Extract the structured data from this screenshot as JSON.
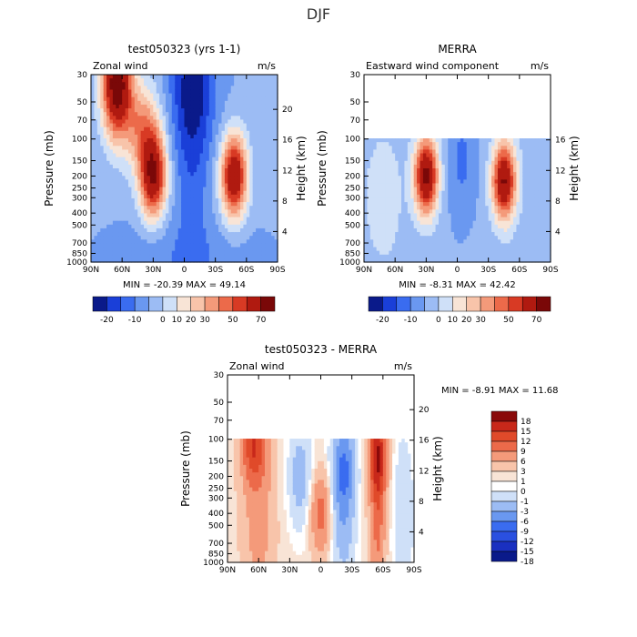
{
  "page": {
    "title": "DJF"
  },
  "chart_data": [
    {
      "type": "heatmap",
      "title": "test050323 (yrs 1-1)",
      "subtitle": "Zonal wind",
      "units": "m/s",
      "ylabel": "Pressure (mb)",
      "ylabel_right": "Height (km)",
      "x_ticks": [
        "90N",
        "60N",
        "30N",
        "0",
        "30S",
        "60S",
        "90S"
      ],
      "y_ticks": [
        "30",
        "50",
        "70",
        "100",
        "150",
        "200",
        "250",
        "300",
        "400",
        "500",
        "700",
        "850",
        "1000"
      ],
      "y_right_ticks": [
        "20",
        "16",
        "12",
        "8",
        "4"
      ],
      "min_max_text": "MIN = -20.39   MAX = 49.14",
      "colorbar_levels": [
        "-20",
        "-10",
        "0",
        "10",
        "20",
        "30",
        "50",
        "70"
      ],
      "field_summary": [
        {
          "feature": "NH tropospheric jet",
          "lat": "30N",
          "pressure_mb": 200,
          "value": 35
        },
        {
          "feature": "SH tropospheric jet",
          "lat": "50S",
          "pressure_mb": 200,
          "value": 35
        },
        {
          "feature": "NH stratospheric jet",
          "lat": "60N",
          "pressure_mb": 40,
          "value": 45
        },
        {
          "feature": "Tropical easterlies",
          "lat": "10S",
          "pressure_mb": 40,
          "value": -20
        }
      ]
    },
    {
      "type": "heatmap",
      "title": "MERRA",
      "subtitle": "Eastward wind component",
      "units": "m/s",
      "ylabel": "Pressure (mb)",
      "ylabel_right": "Height (km)",
      "x_ticks": [
        "90N",
        "60N",
        "30N",
        "0",
        "30S",
        "60S",
        "90S"
      ],
      "y_ticks": [
        "30",
        "50",
        "70",
        "100",
        "150",
        "200",
        "250",
        "300",
        "400",
        "500",
        "700",
        "850",
        "1000"
      ],
      "y_right_ticks": [
        "16",
        "12",
        "8",
        "4"
      ],
      "min_max_text": "MIN =  -8.31   MAX =  42.42",
      "colorbar_levels": [
        "-20",
        "-10",
        "0",
        "10",
        "20",
        "30",
        "50",
        "70"
      ],
      "field_summary": [
        {
          "feature": "NH tropospheric jet",
          "lat": "30N",
          "pressure_mb": 200,
          "value": 40
        },
        {
          "feature": "SH tropospheric jet",
          "lat": "45S",
          "pressure_mb": 200,
          "value": 40
        },
        {
          "feature": "Equatorial easterlies",
          "lat": "5S",
          "pressure_mb": 150,
          "value": -8
        }
      ]
    },
    {
      "type": "heatmap",
      "title": "test050323 - MERRA",
      "subtitle": "Zonal wind",
      "units": "m/s",
      "ylabel": "Pressure (mb)",
      "ylabel_right": "Height (km)",
      "x_ticks": [
        "90N",
        "60N",
        "30N",
        "0",
        "30S",
        "60S",
        "90S"
      ],
      "y_ticks": [
        "30",
        "50",
        "70",
        "100",
        "150",
        "200",
        "250",
        "300",
        "400",
        "500",
        "700",
        "850",
        "1000"
      ],
      "y_right_ticks": [
        "20",
        "16",
        "12",
        "8",
        "4"
      ],
      "min_max_text": "MIN =  -8.91   MAX =  11.68",
      "colorbar_levels": [
        "18",
        "15",
        "12",
        "9",
        "6",
        "3",
        "1",
        "0",
        "-1",
        "-3",
        "-6",
        "-9",
        "-12",
        "-15",
        "-18"
      ],
      "field_summary": [
        {
          "feature": "NH high-lat positive",
          "lat": "65N",
          "pressure_mb": 100,
          "value": 9
        },
        {
          "feature": "SH jet positive",
          "lat": "55S",
          "pressure_mb": 120,
          "value": 12
        },
        {
          "feature": "Tropical positive",
          "lat": "0",
          "pressure_mb": 400,
          "value": 6
        },
        {
          "feature": "SH negative",
          "lat": "20S",
          "pressure_mb": 150,
          "value": -9
        }
      ]
    }
  ]
}
